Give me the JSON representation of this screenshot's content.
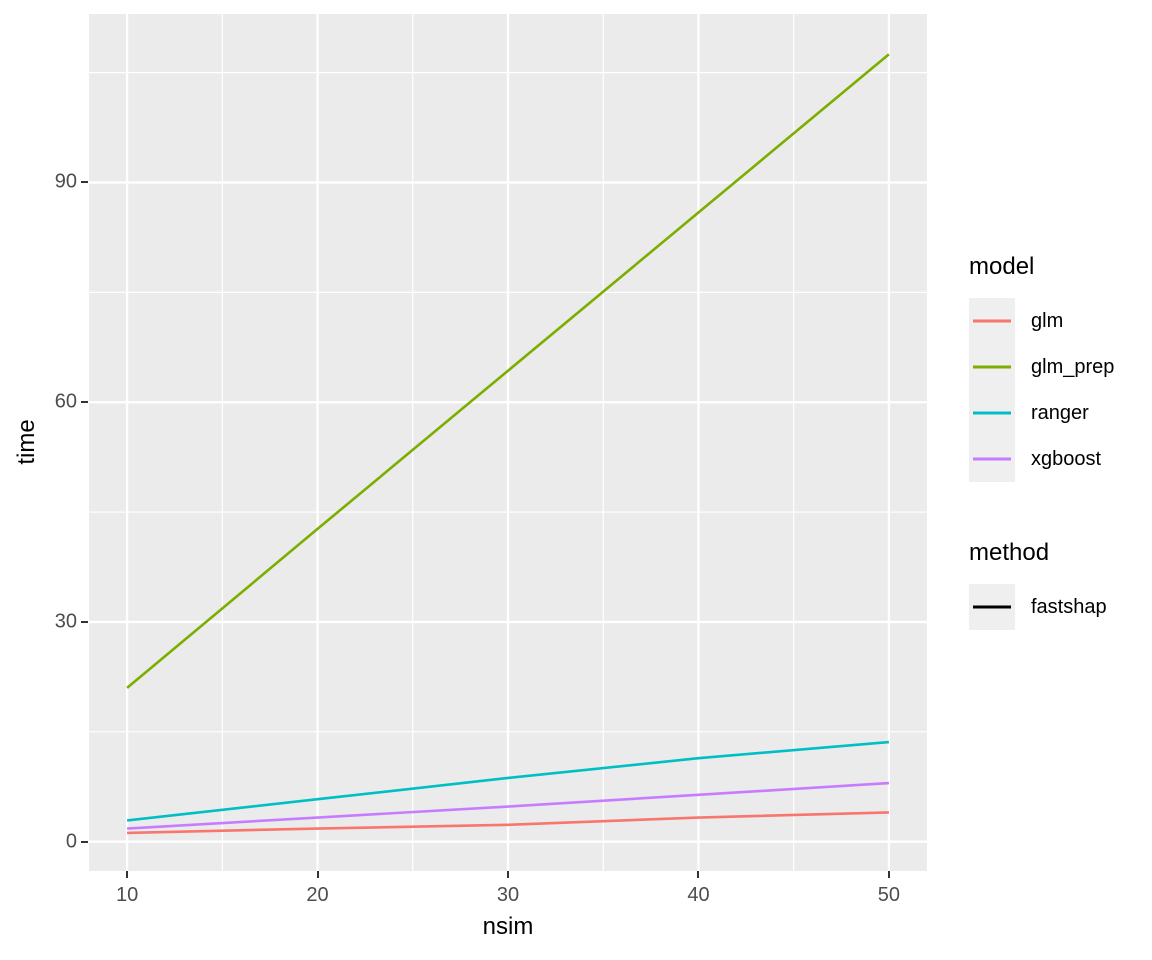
{
  "figure": {
    "background": "#FFFFFF",
    "panel_background": "#EBEBEB",
    "grid_color": "#FFFFFF",
    "tick_mark_color": "#333333",
    "tick_label_color": "#4D4D4D",
    "axis_title_color": "#000000",
    "legend_key_background": "#EFEFEF"
  },
  "chart_data": {
    "type": "line",
    "title": "",
    "xlabel": "nsim",
    "ylabel": "time",
    "x": [
      10,
      20,
      30,
      40,
      50
    ],
    "series": [
      {
        "name": "glm",
        "color": "#F8766D",
        "values": [
          1.2,
          1.8,
          2.3,
          3.3,
          4.0
        ]
      },
      {
        "name": "glm_prep",
        "color": "#7CAE00",
        "values": [
          21.0,
          42.7,
          64.3,
          85.9,
          107.5
        ]
      },
      {
        "name": "ranger",
        "color": "#00BFC4",
        "values": [
          2.9,
          5.8,
          8.7,
          11.4,
          13.6
        ]
      },
      {
        "name": "xgboost",
        "color": "#C77CFF",
        "values": [
          1.8,
          3.3,
          4.8,
          6.4,
          8.0
        ]
      }
    ],
    "xlim": [
      8,
      52
    ],
    "ylim": [
      -4,
      113
    ],
    "x_major_ticks": [
      10,
      20,
      30,
      40,
      50
    ],
    "x_minor_ticks": [
      15,
      25,
      35,
      45
    ],
    "y_major_ticks": [
      0,
      30,
      60,
      90
    ],
    "y_minor_ticks": [
      15,
      45,
      75,
      105
    ],
    "grid": true,
    "legend_position": "right"
  },
  "legends": {
    "model": {
      "title": "model",
      "items": [
        {
          "label": "glm",
          "color": "#F8766D"
        },
        {
          "label": "glm_prep",
          "color": "#7CAE00"
        },
        {
          "label": "ranger",
          "color": "#00BFC4"
        },
        {
          "label": "xgboost",
          "color": "#C77CFF"
        }
      ]
    },
    "method": {
      "title": "method",
      "items": [
        {
          "label": "fastshap",
          "color": "#000000"
        }
      ]
    }
  }
}
